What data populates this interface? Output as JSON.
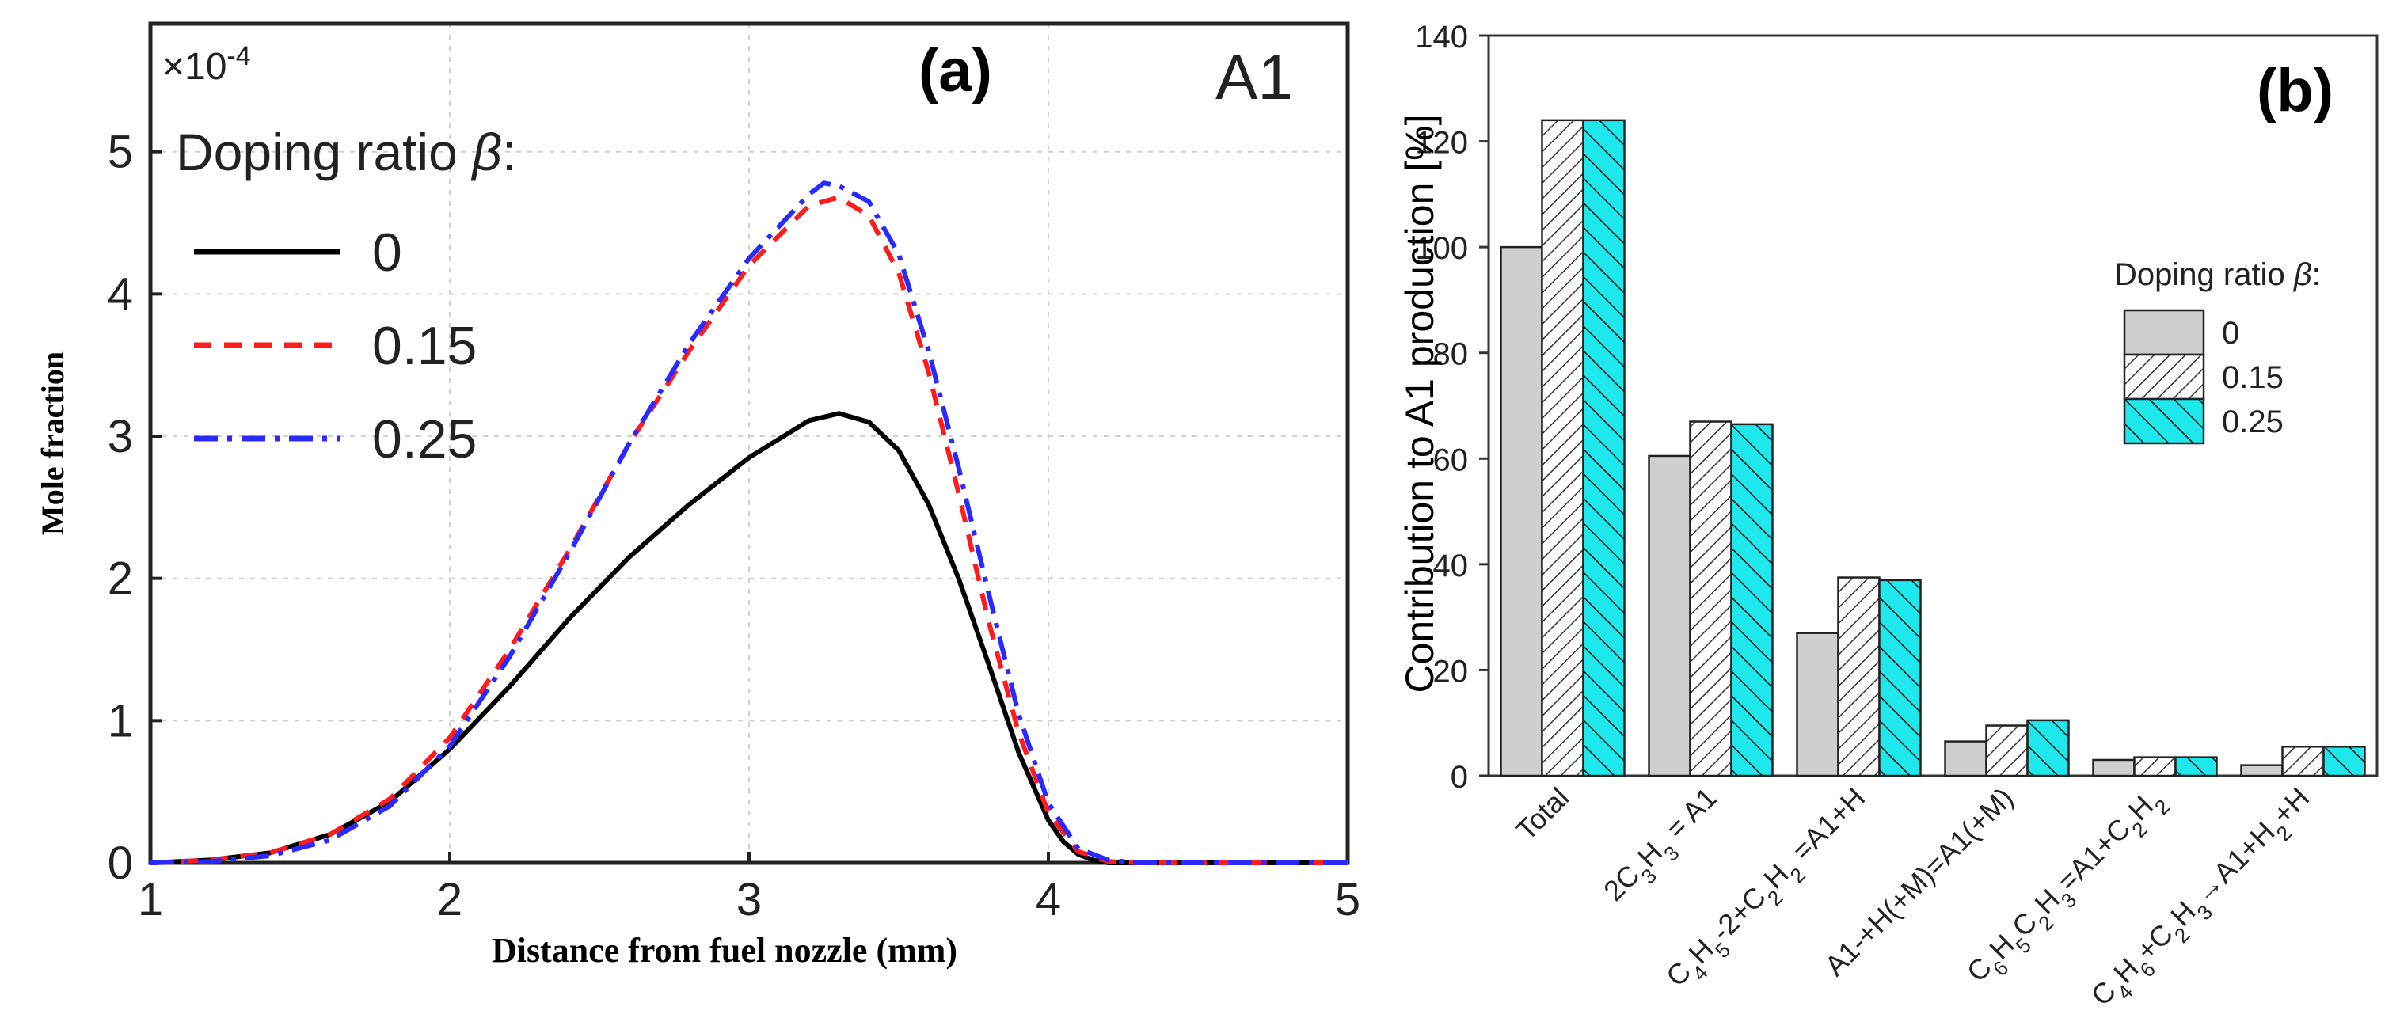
{
  "chart_data": [
    {
      "type": "line",
      "panel_label": "(a)",
      "species_label": "A1",
      "xlabel": "Distance from fuel nozzle (mm)",
      "ylabel": "Mole fraction",
      "y_multiplier": "×10",
      "y_multiplier_exp": "-4",
      "xlim": [
        1,
        5
      ],
      "ylim": [
        0,
        5.9
      ],
      "xticks": [
        "1",
        "2",
        "3",
        "4",
        "5"
      ],
      "yticks": [
        "0",
        "1",
        "2",
        "3",
        "4",
        "5"
      ],
      "legend_title": "Doping ratio",
      "legend_symbol": "β",
      "legend_suffix": ":",
      "series": [
        {
          "name": "0",
          "color": "#000000",
          "x": [
            1.0,
            1.2,
            1.4,
            1.6,
            1.8,
            2.0,
            2.2,
            2.4,
            2.6,
            2.8,
            3.0,
            3.2,
            3.3,
            3.4,
            3.5,
            3.6,
            3.7,
            3.8,
            3.9,
            4.0,
            4.05,
            4.1,
            4.15,
            4.2,
            4.3,
            4.5,
            5.0
          ],
          "y": [
            0,
            0.02,
            0.07,
            0.2,
            0.43,
            0.8,
            1.24,
            1.72,
            2.15,
            2.52,
            2.85,
            3.11,
            3.16,
            3.1,
            2.9,
            2.52,
            2.0,
            1.4,
            0.78,
            0.3,
            0.15,
            0.06,
            0.02,
            0,
            0,
            0,
            0
          ]
        },
        {
          "name": "0.15",
          "color": "#ff1c1c",
          "x": [
            1.0,
            1.2,
            1.4,
            1.6,
            1.8,
            2.0,
            2.2,
            2.4,
            2.6,
            2.8,
            3.0,
            3.2,
            3.3,
            3.4,
            3.5,
            3.6,
            3.7,
            3.8,
            3.9,
            4.0,
            4.1,
            4.2,
            4.3,
            4.5,
            5.0
          ],
          "y": [
            0,
            0.02,
            0.07,
            0.2,
            0.45,
            0.88,
            1.5,
            2.2,
            2.95,
            3.6,
            4.2,
            4.62,
            4.68,
            4.55,
            4.15,
            3.45,
            2.6,
            1.7,
            0.92,
            0.35,
            0.08,
            0.01,
            0,
            0,
            0
          ]
        },
        {
          "name": "0.25",
          "color": "#2a2aff",
          "x": [
            1.0,
            1.2,
            1.4,
            1.6,
            1.8,
            2.0,
            2.2,
            2.4,
            2.6,
            2.8,
            3.0,
            3.2,
            3.25,
            3.3,
            3.4,
            3.5,
            3.6,
            3.7,
            3.8,
            3.9,
            4.0,
            4.1,
            4.2,
            4.3,
            4.5,
            5.0
          ],
          "y": [
            0,
            0.01,
            0.05,
            0.16,
            0.4,
            0.82,
            1.45,
            2.18,
            2.95,
            3.65,
            4.25,
            4.7,
            4.78,
            4.76,
            4.65,
            4.28,
            3.6,
            2.78,
            1.9,
            1.05,
            0.42,
            0.1,
            0.02,
            0,
            0,
            0
          ]
        }
      ]
    },
    {
      "type": "bar",
      "panel_label": "(b)",
      "ylabel": "Contribution to A1 production [%]",
      "ylim": [
        0,
        140
      ],
      "yticks": [
        "0",
        "20",
        "40",
        "60",
        "80",
        "100",
        "120",
        "140"
      ],
      "legend_title": "Doping ratio",
      "legend_symbol": "β",
      "legend_suffix": ":",
      "categories": [
        {
          "main": "Total",
          "parts": [
            [
              "Total",
              ""
            ]
          ]
        },
        {
          "main": "2C3H3 = A1",
          "parts": [
            [
              "2C",
              ""
            ],
            [
              "3",
              "sub"
            ],
            [
              "H",
              ""
            ],
            [
              "3",
              "sub"
            ],
            [
              " = A1",
              ""
            ]
          ]
        },
        {
          "main": "C4H5-2+C2H2 =A1+H",
          "parts": [
            [
              "C",
              ""
            ],
            [
              "4",
              "sub"
            ],
            [
              "H",
              ""
            ],
            [
              "5",
              "sub"
            ],
            [
              "-2+C",
              ""
            ],
            [
              "2",
              "sub"
            ],
            [
              "H",
              ""
            ],
            [
              "2",
              "sub"
            ],
            [
              " =A1+H",
              ""
            ]
          ]
        },
        {
          "main": "A1-+H(+M)=A1(+M)",
          "parts": [
            [
              "A1-+H(+M)=A1(+M)",
              ""
            ]
          ]
        },
        {
          "main": "C6H5C2H3=A1+C2H2",
          "parts": [
            [
              "C",
              ""
            ],
            [
              "6",
              "sub"
            ],
            [
              "H",
              ""
            ],
            [
              "5",
              "sub"
            ],
            [
              "C",
              ""
            ],
            [
              "2",
              "sub"
            ],
            [
              "H",
              ""
            ],
            [
              "3",
              "sub"
            ],
            [
              "=A1+C",
              ""
            ],
            [
              "2",
              "sub"
            ],
            [
              "H",
              ""
            ],
            [
              "2",
              "sub"
            ]
          ]
        },
        {
          "main": "C4H6+C2H3→A1+H2+H",
          "parts": [
            [
              "C",
              ""
            ],
            [
              "4",
              "sub"
            ],
            [
              "H",
              ""
            ],
            [
              "6",
              "sub"
            ],
            [
              "+C",
              ""
            ],
            [
              "2",
              "sub"
            ],
            [
              "H",
              ""
            ],
            [
              "3",
              "sub"
            ],
            [
              "→A1+H",
              ""
            ],
            [
              "2",
              "sub"
            ],
            [
              "+H",
              ""
            ]
          ]
        }
      ],
      "series": [
        {
          "name": "0",
          "fill": "#cfcfcf",
          "pattern": "solid",
          "values": [
            100,
            60.5,
            27,
            6.5,
            3,
            2
          ]
        },
        {
          "name": "0.15",
          "fill": "#ffffff",
          "pattern": "hatch",
          "values": [
            124,
            67,
            37.5,
            9.5,
            3.5,
            5.5
          ]
        },
        {
          "name": "0.25",
          "fill": "#1ee8ec",
          "pattern": "hatch",
          "values": [
            124,
            66.5,
            37,
            10.5,
            3.5,
            5.5
          ]
        }
      ]
    }
  ]
}
